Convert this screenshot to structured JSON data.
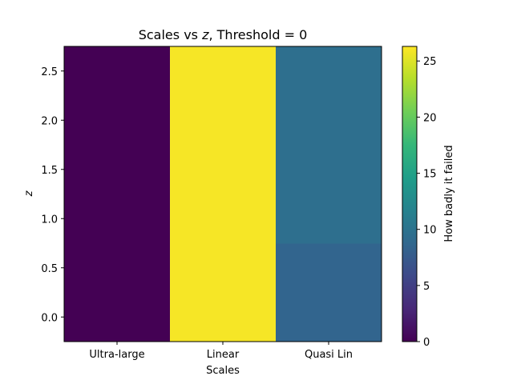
{
  "chart_data": {
    "type": "heatmap",
    "title_prefix": "Scales vs ",
    "title_var": "z",
    "title_suffix": ", Threshold = 0",
    "xlabel": "Scales",
    "ylabel": "z",
    "categories": [
      "Ultra-large",
      "Linear",
      "Quasi Lin"
    ],
    "y_centers": [
      0.0,
      0.5,
      1.0,
      1.5,
      2.0,
      2.5
    ],
    "ylim": [
      -0.25,
      2.75
    ],
    "yticks": [
      "0.0",
      "0.5",
      "1.0",
      "1.5",
      "2.0",
      "2.5"
    ],
    "values": [
      [
        0,
        26,
        8.5
      ],
      [
        0,
        26,
        8.5
      ],
      [
        0,
        26,
        9.5
      ],
      [
        0,
        26,
        9.5
      ],
      [
        0,
        26,
        9.5
      ],
      [
        0,
        26,
        9.5
      ]
    ],
    "colorbar": {
      "label": "How badly it failed",
      "range": [
        0,
        26.3
      ],
      "ticks": [
        "0",
        "5",
        "10",
        "15",
        "20",
        "25"
      ],
      "colormap": "viridis"
    },
    "grid": false
  }
}
